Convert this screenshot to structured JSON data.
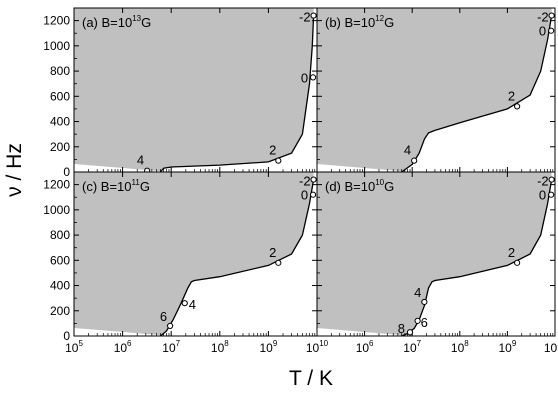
{
  "figure": {
    "xlabel": "T / K",
    "ylabel": "ν / Hz"
  },
  "chart_data": [
    {
      "type": "line",
      "panel_label": {
        "prefix": "(a) B=10",
        "exp": "13",
        "unit": "G"
      },
      "x_scale": "log",
      "xlim": [
        100000,
        10000000000
      ],
      "ylim": [
        0,
        1300
      ],
      "y_ticks": [
        0,
        200,
        400,
        600,
        800,
        1000,
        1200
      ],
      "x_ticks": [
        "10^5",
        "10^6",
        "10^7",
        "10^8",
        "10^9",
        "10^10"
      ],
      "shaded_region": "above curve (gray)",
      "curve": {
        "x": [
          6000000,
          7000000,
          10000000,
          100000000,
          1000000000,
          3000000000,
          5000000000,
          7000000000,
          8000000000,
          8500000000
        ],
        "y": [
          0,
          30,
          40,
          55,
          80,
          150,
          300,
          700,
          1000,
          1240
        ]
      },
      "points": [
        {
          "label": "4",
          "x": 3200000,
          "y": 10
        },
        {
          "label": "2",
          "x": 1600000000,
          "y": 90
        },
        {
          "label": "0",
          "x": 8300000000,
          "y": 750
        },
        {
          "label": "-2",
          "x": 8500000000,
          "y": 1240
        }
      ]
    },
    {
      "type": "line",
      "panel_label": {
        "prefix": "(b) B=10",
        "exp": "12",
        "unit": "G"
      },
      "x_scale": "log",
      "xlim": [
        100000,
        10000000000
      ],
      "ylim": [
        0,
        1300
      ],
      "y_ticks": [
        0,
        200,
        400,
        600,
        800,
        1000,
        1200
      ],
      "x_ticks": [
        "10^5",
        "10^6",
        "10^7",
        "10^8",
        "10^9",
        "10^10"
      ],
      "shaded_region": "above curve (gray)",
      "curve": {
        "x": [
          6000000,
          10000000,
          14000000,
          18000000,
          22000000,
          30000000,
          100000000,
          1000000000,
          3000000000,
          5000000000,
          7000000000,
          8500000000
        ],
        "y": [
          0,
          60,
          150,
          260,
          310,
          330,
          390,
          500,
          610,
          800,
          1050,
          1240
        ]
      },
      "points": [
        {
          "label": "4",
          "x": 11000000,
          "y": 90
        },
        {
          "label": "2",
          "x": 1600000000,
          "y": 520
        },
        {
          "label": "0",
          "x": 8300000000,
          "y": 1120
        },
        {
          "label": "-2",
          "x": 8500000000,
          "y": 1240
        }
      ]
    },
    {
      "type": "line",
      "panel_label": {
        "prefix": "(c) B=10",
        "exp": "11",
        "unit": "G"
      },
      "x_scale": "log",
      "xlim": [
        100000,
        10000000000
      ],
      "ylim": [
        0,
        1300
      ],
      "y_ticks": [
        0,
        200,
        400,
        600,
        800,
        1000,
        1200
      ],
      "x_ticks": [
        "10^5",
        "10^6",
        "10^7",
        "10^8",
        "10^9",
        "10^10"
      ],
      "shaded_region": "above curve (gray)",
      "curve": {
        "x": [
          6000000,
          8000000,
          11000000,
          16000000,
          22000000,
          26000000,
          30000000,
          100000000,
          1000000000,
          3000000000,
          5000000000,
          7000000000,
          8500000000
        ],
        "y": [
          0,
          40,
          130,
          260,
          380,
          430,
          440,
          470,
          560,
          650,
          800,
          1050,
          1240
        ]
      },
      "points": [
        {
          "label": "6",
          "x": 9500000,
          "y": 80
        },
        {
          "label": "4",
          "x": 19000000,
          "y": 260
        },
        {
          "label": "2",
          "x": 1600000000,
          "y": 580
        },
        {
          "label": "0",
          "x": 8300000000,
          "y": 1120
        },
        {
          "label": "-2",
          "x": 8500000000,
          "y": 1240
        }
      ]
    },
    {
      "type": "line",
      "panel_label": {
        "prefix": "(d) B=10",
        "exp": "10",
        "unit": "G"
      },
      "x_scale": "log",
      "xlim": [
        100000,
        10000000000
      ],
      "ylim": [
        0,
        1300
      ],
      "y_ticks": [
        0,
        200,
        400,
        600,
        800,
        1000,
        1200
      ],
      "x_ticks": [
        "10^5",
        "10^6",
        "10^7",
        "10^8",
        "10^9",
        "10^10"
      ],
      "shaded_region": "above curve (gray)",
      "curve": {
        "x": [
          6000000,
          8000000,
          11000000,
          14000000,
          18000000,
          22000000,
          26000000,
          30000000,
          100000000,
          1000000000,
          3000000000,
          5000000000,
          7000000000,
          8500000000
        ],
        "y": [
          0,
          20,
          60,
          130,
          240,
          380,
          430,
          440,
          470,
          560,
          650,
          800,
          1050,
          1240
        ]
      },
      "points": [
        {
          "label": "8",
          "x": 9000000,
          "y": 30
        },
        {
          "label": "6",
          "x": 13000000,
          "y": 120
        },
        {
          "label": "4",
          "x": 18000000,
          "y": 270
        },
        {
          "label": "2",
          "x": 1600000000,
          "y": 580
        },
        {
          "label": "0",
          "x": 8300000000,
          "y": 1120
        },
        {
          "label": "-2",
          "x": 8500000000,
          "y": 1240
        }
      ]
    }
  ]
}
